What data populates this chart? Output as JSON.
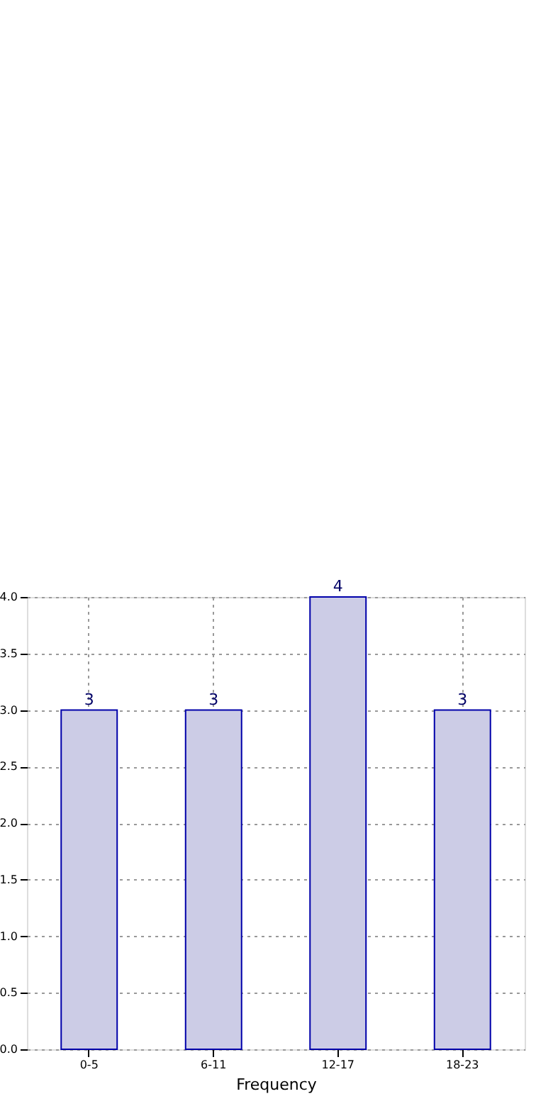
{
  "chart_data": {
    "type": "bar",
    "xlabel": "Frequency",
    "categories": [
      "0-5",
      "6-11",
      "12-17",
      "18-23"
    ],
    "values": [
      3,
      3,
      4,
      3
    ],
    "color": "#cccce6",
    "ylim": [
      0,
      4
    ],
    "yticks": [
      {
        "value": 0,
        "label": "0.0"
      },
      {
        "value": 0.5,
        "label": "0.5"
      },
      {
        "value": 1,
        "label": "1.0"
      },
      {
        "value": 1.5,
        "label": "1.5"
      },
      {
        "value": 2,
        "label": "2.0"
      },
      {
        "value": 2.5,
        "label": "2.5"
      },
      {
        "value": 3,
        "label": "3.0"
      },
      {
        "value": 3.5,
        "label": "3.5"
      },
      {
        "value": 4,
        "label": "4.0"
      }
    ],
    "grid": true,
    "data_labels": true
  }
}
